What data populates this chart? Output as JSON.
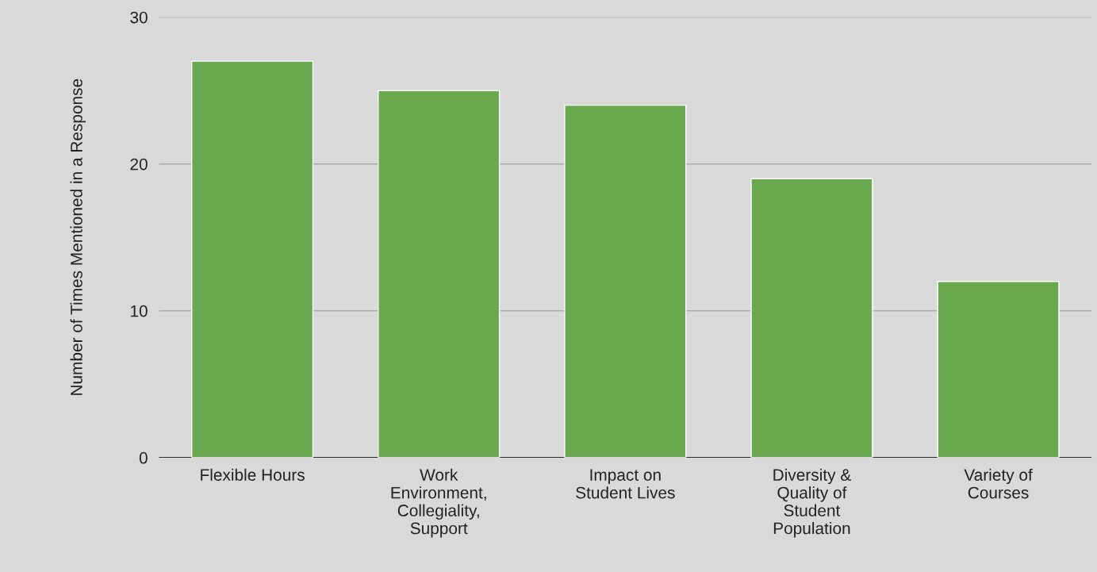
{
  "chart_data": {
    "type": "bar",
    "ylabel": "Number of Times Mentioned in a Response",
    "categories": [
      "Flexible Hours",
      "Work Environment, Collegiality, Support",
      "Impact on Student Lives",
      "Diversity & Quality of Student Population",
      "Variety of Courses"
    ],
    "values": [
      27,
      25,
      24,
      19,
      12
    ],
    "color": "#6aa84f",
    "ylim": [
      0,
      30
    ],
    "yticks": [
      0,
      10,
      20,
      30
    ],
    "grid": "y",
    "legend": false
  }
}
